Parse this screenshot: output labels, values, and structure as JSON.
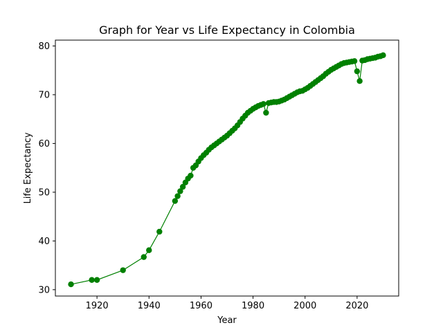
{
  "chart_data": {
    "type": "line",
    "title": "Graph for Year vs Life Expectancy in Colombia",
    "xlabel": "Year",
    "ylabel": "Life Expectancy",
    "xlim": [
      1904,
      2036
    ],
    "ylim": [
      28.7,
      81.2
    ],
    "xticks": [
      1920,
      1940,
      1960,
      1980,
      2000,
      2020
    ],
    "yticks": [
      30,
      40,
      50,
      60,
      70,
      80
    ],
    "grid": false,
    "legend": "none",
    "series": [
      {
        "color": "#008000",
        "marker": "circle",
        "x": [
          1910,
          1918,
          1920,
          1930,
          1938,
          1940,
          1944,
          1950,
          1951,
          1952,
          1953,
          1954,
          1955,
          1956,
          1957,
          1958,
          1959,
          1960,
          1961,
          1962,
          1963,
          1964,
          1965,
          1966,
          1967,
          1968,
          1969,
          1970,
          1971,
          1972,
          1973,
          1974,
          1975,
          1976,
          1977,
          1978,
          1979,
          1980,
          1981,
          1982,
          1983,
          1984,
          1985,
          1986,
          1987,
          1988,
          1989,
          1990,
          1991,
          1992,
          1993,
          1994,
          1995,
          1996,
          1997,
          1998,
          1999,
          2000,
          2001,
          2002,
          2003,
          2004,
          2005,
          2006,
          2007,
          2008,
          2009,
          2010,
          2011,
          2012,
          2013,
          2014,
          2015,
          2016,
          2017,
          2018,
          2019,
          2020,
          2021,
          2022,
          2023,
          2024,
          2025,
          2026,
          2027,
          2028,
          2029,
          2030
        ],
        "y": [
          31.1,
          32.0,
          32.0,
          34.0,
          36.7,
          38.1,
          41.9,
          48.2,
          49.2,
          50.2,
          51.1,
          52.0,
          52.8,
          53.4,
          55.0,
          55.5,
          56.3,
          57.0,
          57.6,
          58.1,
          58.7,
          59.2,
          59.6,
          60.0,
          60.4,
          60.8,
          61.2,
          61.6,
          62.1,
          62.6,
          63.1,
          63.7,
          64.4,
          65.1,
          65.7,
          66.3,
          66.7,
          67.1,
          67.4,
          67.7,
          67.9,
          68.1,
          66.3,
          68.3,
          68.4,
          68.5,
          68.5,
          68.6,
          68.8,
          69.0,
          69.3,
          69.6,
          69.9,
          70.2,
          70.5,
          70.7,
          70.8,
          71.1,
          71.4,
          71.8,
          72.2,
          72.6,
          73.0,
          73.4,
          73.8,
          74.3,
          74.7,
          75.1,
          75.4,
          75.7,
          76.0,
          76.3,
          76.5,
          76.6,
          76.7,
          76.8,
          76.9,
          74.8,
          72.8,
          77.0,
          77.1,
          77.3,
          77.4,
          77.5,
          77.6,
          77.8,
          77.9,
          78.1
        ]
      }
    ]
  }
}
